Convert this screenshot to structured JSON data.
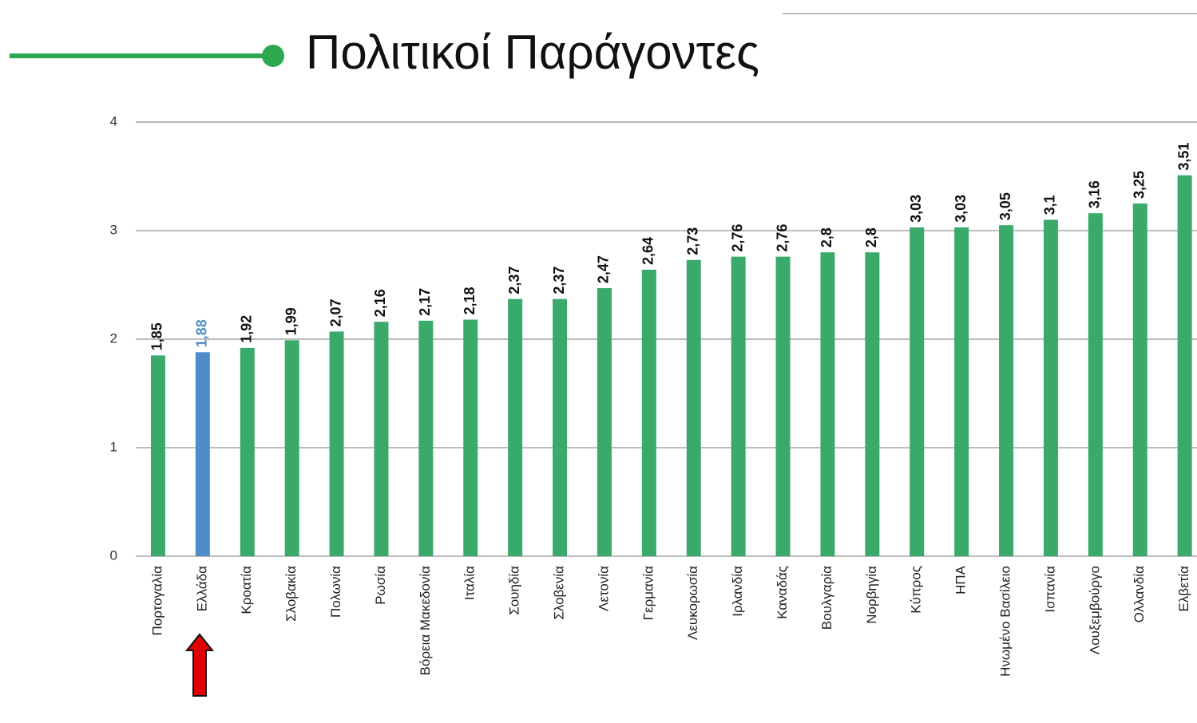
{
  "chart_data": {
    "type": "bar",
    "title": "Πολιτικοί Παράγοντες",
    "categories": [
      "Πορτογαλία",
      "Ελλάδα",
      "Κροατία",
      "Σλοβακία",
      "Πολωνία",
      "Ρωσία",
      "Βόρεια Μακεδονία",
      "Ιταλία",
      "Σουηδία",
      "Σλοβενία",
      "Λετονία",
      "Γερμανία",
      "Λευκορωσία",
      "Ιρλανδία",
      "Καναδάς",
      "Βουλγαρία",
      "Νορβηγία",
      "Κύπρος",
      "ΗΠΑ",
      "Ηνωμένο Βασίλειο",
      "Ισπανία",
      "Λουξεμβούργο",
      "Ολλανδία",
      "Ελβετία"
    ],
    "values": [
      1.85,
      1.88,
      1.92,
      1.99,
      2.07,
      2.16,
      2.17,
      2.18,
      2.37,
      2.37,
      2.47,
      2.64,
      2.73,
      2.76,
      2.76,
      2.8,
      2.8,
      3.03,
      3.03,
      3.05,
      3.1,
      3.16,
      3.25,
      3.51
    ],
    "value_labels": [
      "1,85",
      "1,88",
      "1,92",
      "1,99",
      "2,07",
      "2,16",
      "2,17",
      "2,18",
      "2,37",
      "2,37",
      "2,47",
      "2,64",
      "2,73",
      "2,76",
      "2,76",
      "2,8",
      "2,8",
      "3,03",
      "3,03",
      "3,05",
      "3,1",
      "3,16",
      "3,25",
      "3,51"
    ],
    "colors": [
      "#3aaa6a",
      "#4f8cc9",
      "#3aaa6a",
      "#3aaa6a",
      "#3aaa6a",
      "#3aaa6a",
      "#3aaa6a",
      "#3aaa6a",
      "#3aaa6a",
      "#3aaa6a",
      "#3aaa6a",
      "#3aaa6a",
      "#3aaa6a",
      "#3aaa6a",
      "#3aaa6a",
      "#3aaa6a",
      "#3aaa6a",
      "#3aaa6a",
      "#3aaa6a",
      "#3aaa6a",
      "#3aaa6a",
      "#3aaa6a",
      "#3aaa6a",
      "#3aaa6a"
    ],
    "color": "#3aaa6a",
    "ylim": [
      0,
      4
    ],
    "yticks": [
      0,
      1,
      2,
      3,
      4
    ],
    "grid": true
  }
}
